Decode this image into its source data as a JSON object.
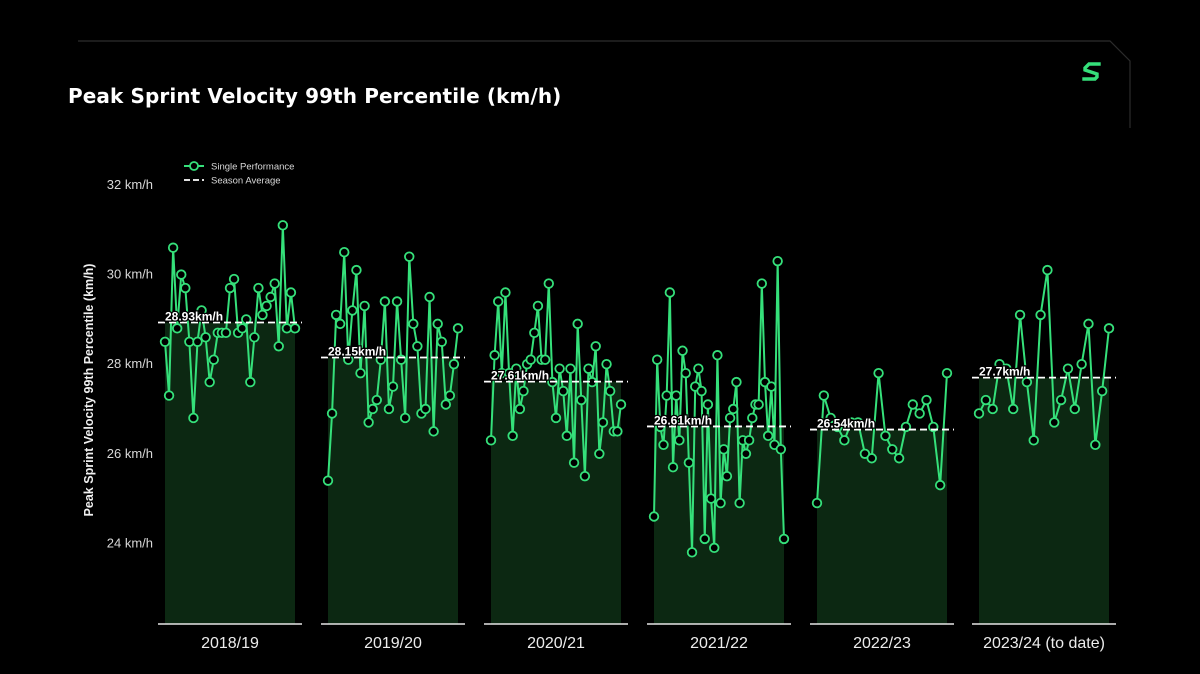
{
  "chart_data": {
    "type": "line",
    "title": "Peak Sprint Velocity 99th Percentile (km/h)",
    "ylabel": "Peak Sprint Velocity 99th Percentile (km/h)",
    "ylim": [
      22.2,
      32
    ],
    "y_ticks": [
      {
        "value": 24,
        "label": "24 km/h"
      },
      {
        "value": 26,
        "label": "26 km/h"
      },
      {
        "value": 28,
        "label": "28 km/h"
      },
      {
        "value": 30,
        "label": "30 km/h"
      },
      {
        "value": 32,
        "label": "32 km/h"
      }
    ],
    "grid": false,
    "legend": {
      "placement": "top-left",
      "entries": [
        {
          "label": "Single Performance",
          "style": "line-marker"
        },
        {
          "label": "Season Average",
          "style": "dashed"
        }
      ]
    },
    "colors": {
      "line": "#35e07a",
      "average": "#ffffff",
      "fill": "#0d2a13",
      "background": "#000000"
    },
    "seasons": [
      {
        "label": "2018/19",
        "average": 28.93,
        "average_label": "28.93km/h",
        "values": [
          28.5,
          27.3,
          30.6,
          28.8,
          30.0,
          29.7,
          28.5,
          26.8,
          28.5,
          29.2,
          28.6,
          27.6,
          28.1,
          28.7,
          28.7,
          28.7,
          29.7,
          29.9,
          28.7,
          28.8,
          29.0,
          27.6,
          28.6,
          29.7,
          29.1,
          29.3,
          29.5,
          29.8,
          28.4,
          31.1,
          28.8,
          29.6,
          28.8
        ]
      },
      {
        "label": "2019/20",
        "average": 28.15,
        "average_label": "28.15km/h",
        "values": [
          25.4,
          26.9,
          29.1,
          28.9,
          30.5,
          28.1,
          29.2,
          30.1,
          27.8,
          29.3,
          26.7,
          27.0,
          27.2,
          28.1,
          29.4,
          27.0,
          27.5,
          29.4,
          28.1,
          26.8,
          30.4,
          28.9,
          28.4,
          26.9,
          27.0,
          29.5,
          26.5,
          28.9,
          28.5,
          27.1,
          27.3,
          28.0,
          28.8
        ]
      },
      {
        "label": "2020/21",
        "average": 27.61,
        "average_label": "27.61km/h",
        "values": [
          26.3,
          28.2,
          29.4,
          27.8,
          29.6,
          27.8,
          26.4,
          27.9,
          27.0,
          27.4,
          28.0,
          28.1,
          28.7,
          29.3,
          28.1,
          28.1,
          29.8,
          27.6,
          26.8,
          27.9,
          27.4,
          26.4,
          27.9,
          25.8,
          28.9,
          27.2,
          25.5,
          27.9,
          27.6,
          28.4,
          26.0,
          26.7,
          28.0,
          27.4,
          26.5,
          26.5,
          27.1
        ]
      },
      {
        "label": "2021/22",
        "average": 26.61,
        "average_label": "26.61km/h",
        "values": [
          24.6,
          28.1,
          26.6,
          26.2,
          27.3,
          29.6,
          25.7,
          27.3,
          26.3,
          28.3,
          27.8,
          25.8,
          23.8,
          27.5,
          27.9,
          27.4,
          24.1,
          27.1,
          25.0,
          23.9,
          28.2,
          24.9,
          26.1,
          25.5,
          26.8,
          27.0,
          27.6,
          24.9,
          26.3,
          26.0,
          26.3,
          26.8,
          27.1,
          27.1,
          29.8,
          27.6,
          26.4,
          27.5,
          26.2,
          30.3,
          26.1,
          24.1
        ]
      },
      {
        "label": "2022/23",
        "average": 26.54,
        "average_label": "26.54km/h",
        "values": [
          24.9,
          27.3,
          26.8,
          26.6,
          26.3,
          26.7,
          26.7,
          26.0,
          25.9,
          27.8,
          26.4,
          26.1,
          25.9,
          26.6,
          27.1,
          26.9,
          27.2,
          26.6,
          25.3,
          27.8
        ]
      },
      {
        "label": "2023/24 (to date)",
        "average": 27.7,
        "average_label": "27.7km/h",
        "values": [
          26.9,
          27.2,
          27.0,
          28.0,
          27.9,
          27.0,
          29.1,
          27.6,
          26.3,
          29.1,
          30.1,
          26.7,
          27.2,
          27.9,
          27.0,
          28.0,
          28.9,
          26.2,
          27.4,
          28.8
        ]
      }
    ]
  }
}
